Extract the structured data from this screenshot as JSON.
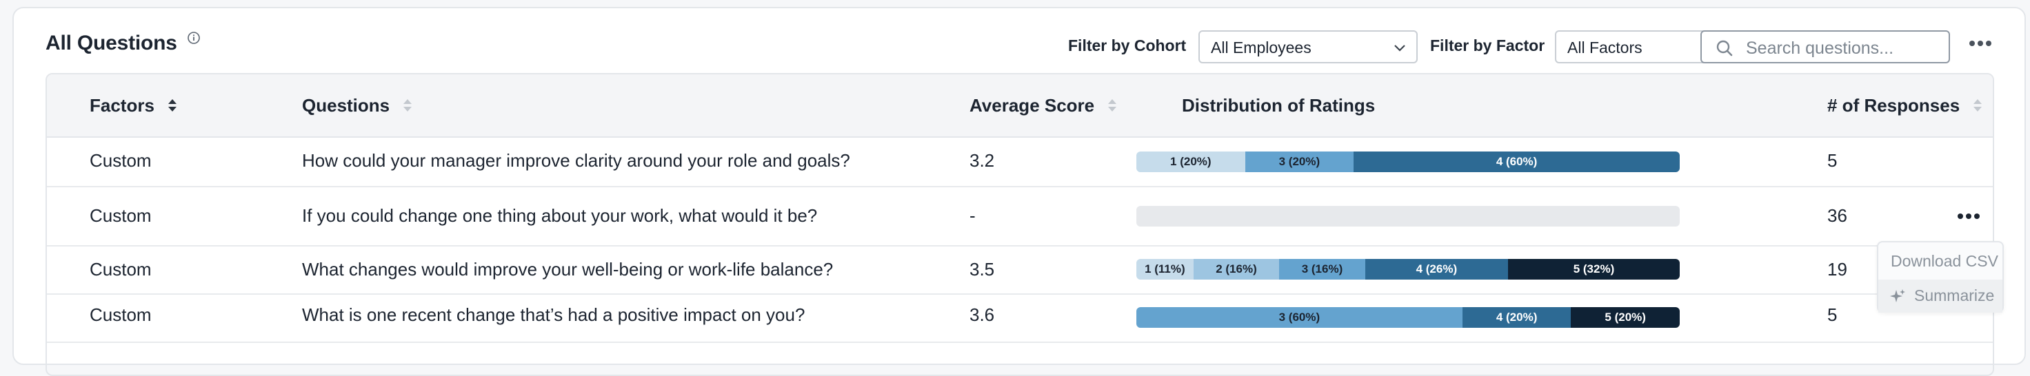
{
  "header": {
    "title": "All Questions",
    "cohort_label": "Filter by Cohort",
    "cohort_value": "All Employees",
    "factor_label": "Filter by Factor",
    "factor_value": "All Factors",
    "search_placeholder": "Search questions..."
  },
  "table": {
    "columns": [
      "Factors",
      "Questions",
      "Average Score",
      "Distribution of Ratings",
      "# of Responses"
    ],
    "rows": [
      {
        "factor": "Custom",
        "question": "How could your manager improve clarity around your role and goals?",
        "score": "3.2",
        "responses": "5",
        "distribution": [
          {
            "label": "1 (20%)",
            "share": 20,
            "color": "#c6dceb"
          },
          {
            "label": "3 (20%)",
            "share": 20,
            "color": "#64a3cf"
          },
          {
            "label": "4 (60%)",
            "share": 60,
            "color": "#2d6a94"
          }
        ]
      },
      {
        "factor": "Custom",
        "question": "If you could change one thing about your work, what would it be?",
        "score": "-",
        "responses": "36",
        "distribution": []
      },
      {
        "factor": "Custom",
        "question": "What changes would improve your well-being or work-life balance?",
        "score": "3.5",
        "responses": "19",
        "distribution": [
          {
            "label": "1 (11%)",
            "share": 10.5,
            "color": "#c6dceb"
          },
          {
            "label": "2 (16%)",
            "share": 15.8,
            "color": "#9dc5e1"
          },
          {
            "label": "3 (16%)",
            "share": 15.8,
            "color": "#64a3cf"
          },
          {
            "label": "4 (26%)",
            "share": 26.3,
            "color": "#2d6a94"
          },
          {
            "label": "5 (32%)",
            "share": 31.6,
            "color": "#0f2235"
          }
        ]
      },
      {
        "factor": "Custom",
        "question": "What is one recent change that’s had a positive impact on you?",
        "score": "3.6",
        "responses": "5",
        "distribution": [
          {
            "label": "3 (60%)",
            "share": 60,
            "color": "#64a3cf"
          },
          {
            "label": "4 (20%)",
            "share": 20,
            "color": "#2d6a94"
          },
          {
            "label": "5 (20%)",
            "share": 20,
            "color": "#0f2235"
          }
        ]
      }
    ]
  },
  "menu": {
    "download": "Download CSV",
    "summarize": "Summarize"
  },
  "colors": {
    "empty_bar": "#e7e9ec",
    "dark_text_on": "#ffffff"
  }
}
